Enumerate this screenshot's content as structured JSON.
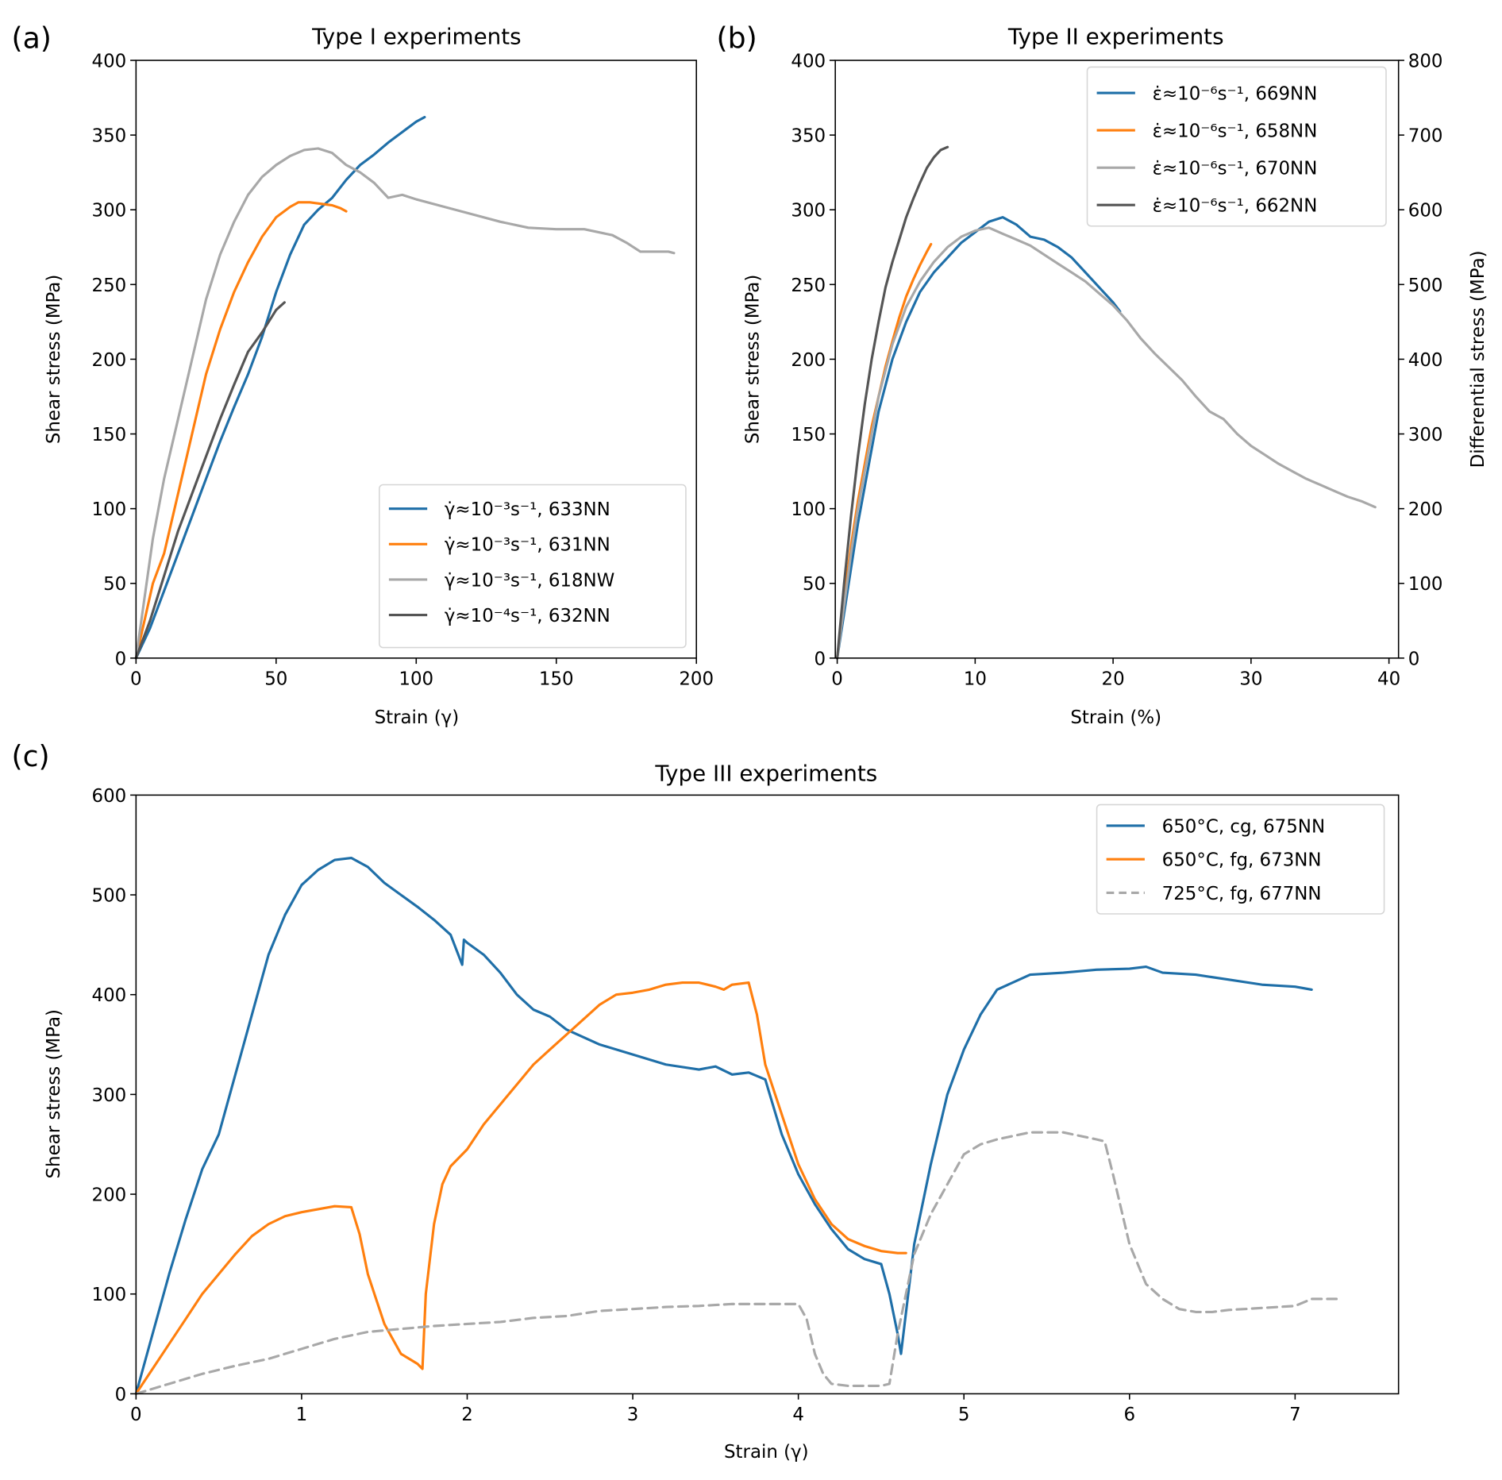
{
  "figure": {
    "panels": [
      {
        "label": "(a)"
      },
      {
        "label": "(b)"
      },
      {
        "label": "(c)"
      }
    ]
  },
  "chart_data": [
    {
      "type": "line",
      "panel": "(a)",
      "title": "Type I experiments",
      "xlabel": "Strain (γ)",
      "ylabel": "Shear stress (MPa)",
      "xlim": [
        0,
        200
      ],
      "ylim": [
        0,
        400
      ],
      "xticks": [
        "0",
        "50",
        "100",
        "150",
        "200"
      ],
      "yticks": [
        "0",
        "50",
        "100",
        "150",
        "200",
        "250",
        "300",
        "350",
        "400"
      ],
      "grid": false,
      "legend_position": "lower-right",
      "series": [
        {
          "name": "γ̇≈10⁻³s⁻¹, 633NN",
          "color": "#1f6fa8",
          "x": [
            0,
            5,
            10,
            15,
            20,
            25,
            30,
            35,
            40,
            45,
            50,
            55,
            60,
            65,
            70,
            75,
            80,
            85,
            90,
            95,
            100,
            103
          ],
          "y": [
            0,
            20,
            45,
            70,
            95,
            120,
            145,
            168,
            190,
            215,
            245,
            270,
            290,
            300,
            308,
            320,
            330,
            337,
            345,
            352,
            359,
            362
          ]
        },
        {
          "name": "γ̇≈10⁻³s⁻¹, 631NN",
          "color": "#ff7f0e",
          "x": [
            0,
            3,
            6,
            10,
            15,
            20,
            25,
            30,
            35,
            40,
            45,
            50,
            55,
            58,
            62,
            66,
            70,
            73,
            75
          ],
          "y": [
            0,
            25,
            50,
            70,
            110,
            150,
            190,
            220,
            245,
            265,
            282,
            295,
            302,
            305,
            305,
            304,
            303,
            301,
            299
          ]
        },
        {
          "name": "γ̇≈10⁻³s⁻¹, 618NW",
          "color": "#a8a8a8",
          "x": [
            0,
            3,
            6,
            10,
            15,
            20,
            25,
            30,
            35,
            40,
            45,
            50,
            55,
            60,
            65,
            70,
            75,
            80,
            85,
            90,
            95,
            100,
            110,
            120,
            130,
            140,
            150,
            160,
            170,
            175,
            180,
            185,
            190,
            192
          ],
          "y": [
            0,
            40,
            80,
            120,
            160,
            200,
            240,
            270,
            292,
            310,
            322,
            330,
            336,
            340,
            341,
            338,
            330,
            325,
            318,
            308,
            310,
            307,
            302,
            297,
            292,
            288,
            287,
            287,
            283,
            278,
            272,
            272,
            272,
            271
          ]
        },
        {
          "name": "γ̇≈10⁻⁴s⁻¹, 632NN",
          "color": "#555555",
          "x": [
            0,
            5,
            10,
            15,
            20,
            25,
            30,
            35,
            40,
            45,
            50,
            53
          ],
          "y": [
            0,
            25,
            55,
            85,
            110,
            135,
            160,
            183,
            205,
            218,
            233,
            238
          ]
        }
      ]
    },
    {
      "type": "line",
      "panel": "(b)",
      "title": "Type II experiments",
      "xlabel": "Strain (%)",
      "ylabel": "Shear stress (MPa)",
      "ylabel_right": "Differential stress (MPa)",
      "xlim": [
        0,
        40
      ],
      "ylim": [
        0,
        400
      ],
      "ylim_right": [
        0,
        800
      ],
      "xticks": [
        "0",
        "10",
        "20",
        "30",
        "40"
      ],
      "yticks": [
        "0",
        "50",
        "100",
        "150",
        "200",
        "250",
        "300",
        "350",
        "400"
      ],
      "yticks_right": [
        "0",
        "100",
        "200",
        "300",
        "400",
        "500",
        "600",
        "700",
        "800"
      ],
      "grid": false,
      "legend_position": "top-right",
      "series": [
        {
          "name": "ε̇≈10⁻⁶s⁻¹, 669NN",
          "color": "#1f6fa8",
          "x": [
            0,
            0.5,
            1,
            1.5,
            2,
            2.5,
            3,
            4,
            5,
            6,
            7,
            8,
            9,
            10,
            11,
            12,
            13,
            14,
            15,
            16,
            17,
            18,
            19,
            20,
            20.5
          ],
          "y": [
            0,
            30,
            60,
            90,
            115,
            140,
            165,
            200,
            225,
            245,
            258,
            268,
            278,
            285,
            292,
            295,
            290,
            282,
            280,
            275,
            268,
            258,
            248,
            238,
            232
          ]
        },
        {
          "name": "ε̇≈10⁻⁶s⁻¹, 658NN",
          "color": "#ff7f0e",
          "x": [
            0,
            0.5,
            1,
            1.5,
            2,
            2.5,
            3,
            3.5,
            4,
            4.5,
            5,
            5.5,
            6,
            6.5,
            6.8
          ],
          "y": [
            0,
            40,
            75,
            105,
            130,
            155,
            175,
            195,
            212,
            228,
            242,
            253,
            263,
            272,
            277
          ]
        },
        {
          "name": "ε̇≈10⁻⁶s⁻¹, 670NN",
          "color": "#a8a8a8",
          "x": [
            0,
            0.5,
            1,
            1.5,
            2,
            2.5,
            3,
            4,
            5,
            6,
            7,
            8,
            9,
            10,
            11,
            12,
            13,
            14,
            15,
            16,
            17,
            18,
            19,
            20,
            21,
            22,
            23,
            24,
            25,
            26,
            27,
            28,
            29,
            30,
            31,
            32,
            33,
            34,
            35,
            36,
            37,
            38,
            38.5,
            39
          ],
          "y": [
            0,
            35,
            70,
            100,
            125,
            150,
            175,
            210,
            235,
            252,
            265,
            275,
            282,
            286,
            288,
            284,
            280,
            276,
            270,
            264,
            258,
            252,
            244,
            236,
            226,
            214,
            204,
            195,
            186,
            175,
            165,
            160,
            150,
            142,
            136,
            130,
            125,
            120,
            116,
            112,
            108,
            105,
            103,
            101
          ]
        },
        {
          "name": "ε̇≈10⁻⁶s⁻¹, 662NN",
          "color": "#555555",
          "x": [
            0,
            0.5,
            1,
            1.5,
            2,
            2.5,
            3,
            3.5,
            4,
            4.5,
            5,
            5.5,
            6,
            6.5,
            7,
            7.5,
            8
          ],
          "y": [
            0,
            50,
            95,
            135,
            170,
            200,
            225,
            248,
            265,
            280,
            295,
            307,
            318,
            328,
            335,
            340,
            342
          ]
        }
      ]
    },
    {
      "type": "line",
      "panel": "(c)",
      "title": "Type III experiments",
      "xlabel": "Strain (γ)",
      "ylabel": "Shear stress (MPa)",
      "xlim": [
        0,
        7.6
      ],
      "ylim": [
        0,
        600
      ],
      "xticks": [
        "0",
        "1",
        "2",
        "3",
        "4",
        "5",
        "6",
        "7"
      ],
      "yticks": [
        "0",
        "100",
        "200",
        "300",
        "400",
        "500",
        "600"
      ],
      "grid": false,
      "legend_position": "top-right",
      "series": [
        {
          "name": "650°C, cg, 675NN",
          "color": "#1f6fa8",
          "style": "solid",
          "x": [
            0,
            0.1,
            0.2,
            0.3,
            0.4,
            0.5,
            0.6,
            0.7,
            0.8,
            0.9,
            1.0,
            1.1,
            1.2,
            1.3,
            1.4,
            1.5,
            1.6,
            1.7,
            1.8,
            1.9,
            1.97,
            1.98,
            2.0,
            2.1,
            2.2,
            2.3,
            2.4,
            2.5,
            2.6,
            2.8,
            3.0,
            3.2,
            3.4,
            3.5,
            3.6,
            3.7,
            3.8,
            3.9,
            4.0,
            4.1,
            4.2,
            4.3,
            4.4,
            4.5,
            4.55,
            4.6,
            4.62,
            4.7,
            4.8,
            4.9,
            5.0,
            5.1,
            5.2,
            5.4,
            5.6,
            5.8,
            6.0,
            6.1,
            6.2,
            6.4,
            6.6,
            6.8,
            7.0,
            7.1
          ],
          "y": [
            0,
            60,
            120,
            175,
            225,
            260,
            320,
            380,
            440,
            480,
            510,
            525,
            535,
            537,
            528,
            512,
            500,
            488,
            475,
            460,
            430,
            455,
            452,
            440,
            422,
            400,
            385,
            378,
            365,
            350,
            340,
            330,
            325,
            328,
            320,
            322,
            315,
            260,
            220,
            190,
            165,
            145,
            135,
            130,
            100,
            60,
            40,
            150,
            230,
            300,
            345,
            380,
            405,
            420,
            422,
            425,
            426,
            428,
            422,
            420,
            415,
            410,
            408,
            405
          ]
        },
        {
          "name": "650°C, fg, 673NN",
          "color": "#ff7f0e",
          "style": "solid",
          "x": [
            0,
            0.1,
            0.2,
            0.3,
            0.4,
            0.5,
            0.6,
            0.7,
            0.8,
            0.9,
            1.0,
            1.1,
            1.2,
            1.3,
            1.35,
            1.4,
            1.45,
            1.5,
            1.55,
            1.6,
            1.65,
            1.7,
            1.73,
            1.75,
            1.8,
            1.85,
            1.9,
            2.0,
            2.1,
            2.2,
            2.3,
            2.4,
            2.5,
            2.6,
            2.7,
            2.8,
            2.9,
            3.0,
            3.1,
            3.2,
            3.3,
            3.4,
            3.5,
            3.55,
            3.6,
            3.7,
            3.75,
            3.8,
            3.9,
            4.0,
            4.1,
            4.2,
            4.3,
            4.4,
            4.5,
            4.6,
            4.65
          ],
          "y": [
            0,
            25,
            50,
            75,
            100,
            120,
            140,
            158,
            170,
            178,
            182,
            185,
            188,
            187,
            160,
            120,
            95,
            70,
            55,
            40,
            35,
            30,
            25,
            100,
            170,
            210,
            228,
            245,
            270,
            290,
            310,
            330,
            345,
            360,
            375,
            390,
            400,
            402,
            405,
            410,
            412,
            412,
            408,
            405,
            410,
            412,
            380,
            330,
            280,
            230,
            195,
            170,
            155,
            148,
            143,
            141,
            141
          ]
        },
        {
          "name": "725°C, fg, 677NN",
          "color": "#a8a8a8",
          "style": "dashed",
          "x": [
            0,
            0.2,
            0.4,
            0.6,
            0.8,
            1.0,
            1.2,
            1.4,
            1.6,
            1.8,
            2.0,
            2.2,
            2.4,
            2.6,
            2.8,
            3.0,
            3.2,
            3.4,
            3.6,
            3.8,
            4.0,
            4.05,
            4.1,
            4.15,
            4.2,
            4.3,
            4.4,
            4.5,
            4.55,
            4.6,
            4.7,
            4.8,
            4.9,
            5.0,
            5.1,
            5.2,
            5.4,
            5.6,
            5.8,
            5.85,
            5.9,
            6.0,
            6.1,
            6.2,
            6.3,
            6.4,
            6.5,
            6.6,
            6.8,
            7.0,
            7.1,
            7.25
          ],
          "y": [
            0,
            10,
            20,
            28,
            35,
            45,
            55,
            62,
            65,
            68,
            70,
            72,
            76,
            78,
            83,
            85,
            87,
            88,
            90,
            90,
            90,
            75,
            40,
            20,
            10,
            8,
            8,
            8,
            10,
            60,
            140,
            180,
            210,
            240,
            250,
            255,
            262,
            262,
            255,
            253,
            220,
            150,
            110,
            95,
            85,
            82,
            82,
            84,
            86,
            88,
            95,
            95
          ]
        }
      ]
    }
  ]
}
